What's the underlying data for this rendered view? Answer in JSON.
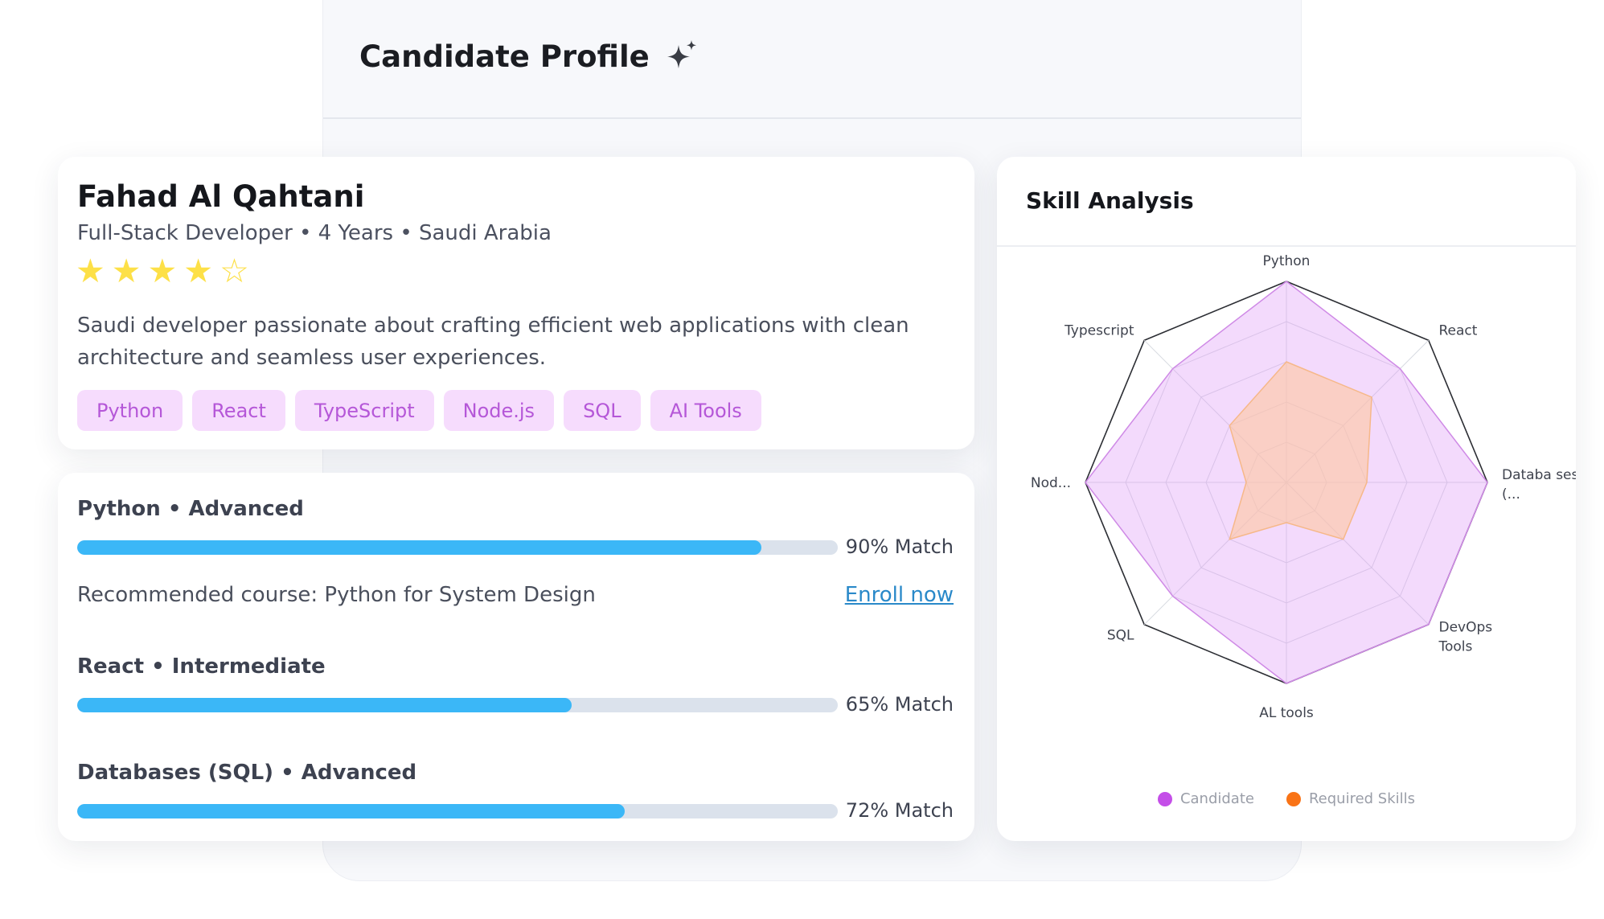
{
  "header": {
    "title": "Candidate Profile",
    "icon": "sparkle-icon"
  },
  "profile": {
    "name": "Fahad Al Qahtani",
    "subtitle": "Full-Stack Developer • 4 Years • Saudi Arabia",
    "rating": 4,
    "rating_max": 5,
    "bio": "Saudi developer passionate about crafting efficient web applications with clean architecture and seamless user experiences.",
    "tags": [
      "Python",
      "React",
      "TypeScript",
      "Node.js",
      "SQL",
      "AI Tools"
    ]
  },
  "skills": [
    {
      "title": "Python • Advanced",
      "percent": 90,
      "match_label": "90% Match"
    },
    {
      "title": "React • Intermediate",
      "percent": 65,
      "match_label": "65% Match"
    },
    {
      "title": "Databases (SQL) • Advanced",
      "percent": 72,
      "match_label": "72% Match"
    }
  ],
  "recommendation": {
    "text": "Recommended course: Python for System Design",
    "link_label": "Enroll now"
  },
  "analysis": {
    "title": "Skill Analysis",
    "chart_data": {
      "type": "radar",
      "axes": [
        "Python",
        "React",
        "Databa ses (...",
        "DevOps Tools",
        "AL tools",
        "SQL",
        "Nod...",
        "Typescript"
      ],
      "scale_max": 100,
      "series": [
        {
          "name": "Candidate",
          "color": "#c44ee8",
          "values": [
            100,
            80,
            100,
            100,
            100,
            80,
            100,
            80
          ]
        },
        {
          "name": "Required Skills",
          "color": "#f97316",
          "values": [
            60,
            60,
            40,
            40,
            20,
            40,
            20,
            40
          ]
        }
      ]
    },
    "legend": [
      {
        "label": "Candidate",
        "color": "#c44ee8"
      },
      {
        "label": "Required Skills",
        "color": "#f97316"
      }
    ]
  }
}
